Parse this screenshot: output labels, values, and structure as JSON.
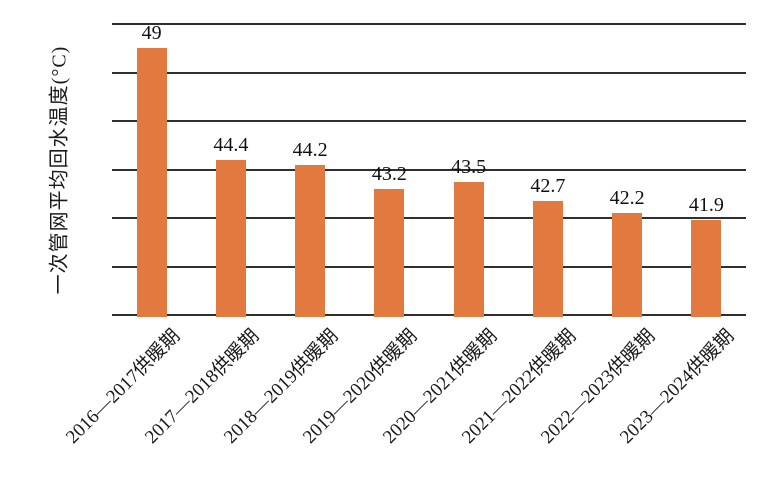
{
  "chart_data": {
    "type": "bar",
    "title": "",
    "xlabel": "",
    "ylabel": "一次管网平均回水温度(°C)",
    "categories": [
      "2016—2017供暖期",
      "2017—2018供暖期",
      "2018—2019供暖期",
      "2019—2020供暖期",
      "2020—2021供暖期",
      "2021—2022供暖期",
      "2022—2023供暖期",
      "2023—2024供暖期"
    ],
    "values": [
      49,
      44.4,
      44.2,
      43.2,
      43.5,
      42.7,
      42.2,
      41.9
    ],
    "value_labels": [
      "49",
      "44.4",
      "44.2",
      "43.2",
      "43.5",
      "42.7",
      "42.2",
      "41.9"
    ],
    "ylim": [
      38,
      50
    ],
    "grid_step": 2,
    "grid": true,
    "legend": "none",
    "bar_color": "#E27A40",
    "gridline_color": "#2f2f2f",
    "text_color": "#111111"
  }
}
